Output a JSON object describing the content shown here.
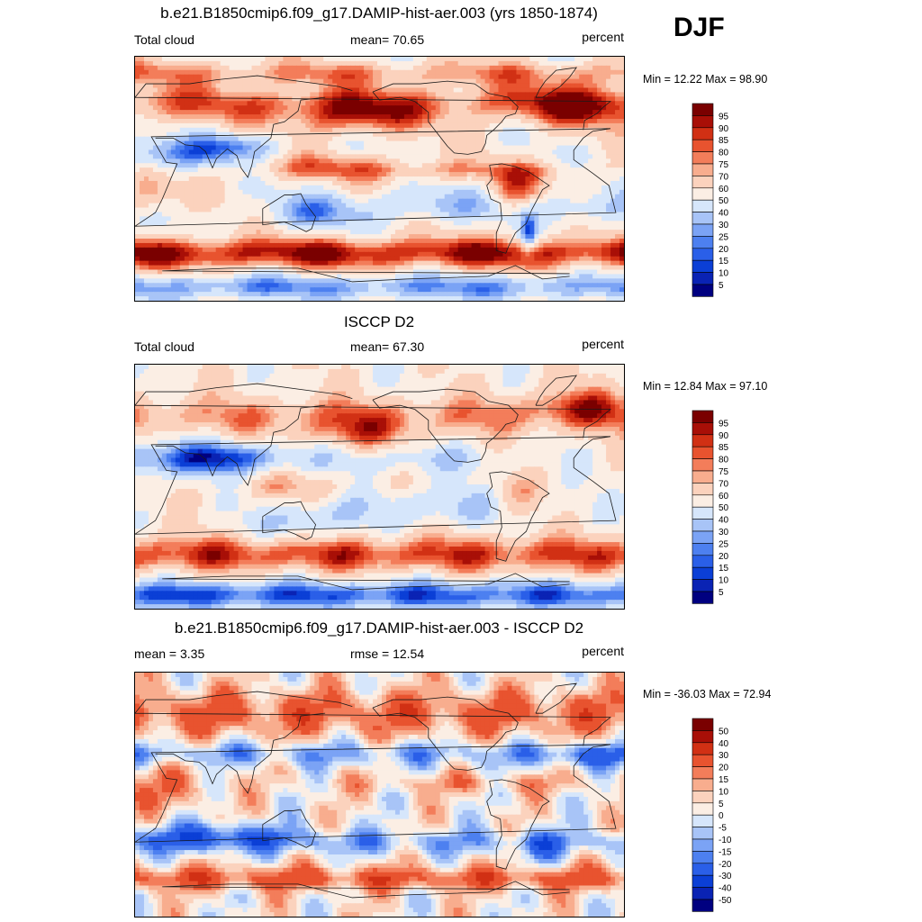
{
  "season": "DJF",
  "panels": [
    {
      "title": "b.e21.B1850cmip6.f09_g17.DAMIP-hist-aer.003 (yrs 1850-1874)",
      "left": "Total cloud",
      "center": "mean=  70.65",
      "right": "percent",
      "minmax": "Min =  12.22 Max =  98.90",
      "colorbar_labels": [
        "95",
        "90",
        "85",
        "80",
        "75",
        "70",
        "60",
        "50",
        "40",
        "30",
        "25",
        "20",
        "15",
        "10",
        "5"
      ]
    },
    {
      "title": "ISCCP D2",
      "left": "Total cloud",
      "center": "mean=  67.30",
      "right": "percent",
      "minmax": "Min =  12.84 Max =  97.10",
      "colorbar_labels": [
        "95",
        "90",
        "85",
        "80",
        "75",
        "70",
        "60",
        "50",
        "40",
        "30",
        "25",
        "20",
        "15",
        "10",
        "5"
      ]
    },
    {
      "title": "b.e21.B1850cmip6.f09_g17.DAMIP-hist-aer.003 - ISCCP D2",
      "left": "mean =   3.35",
      "center": "rmse =  12.54",
      "right": "percent",
      "minmax": "Min = -36.03 Max =  72.94",
      "colorbar_labels": [
        "50",
        "40",
        "30",
        "20",
        "15",
        "10",
        "5",
        "0",
        "-5",
        "-10",
        "-15",
        "-20",
        "-30",
        "-40",
        "-50"
      ]
    }
  ],
  "chart_data": [
    {
      "type": "heatmap",
      "title": "b.e21.B1850cmip6.f09_g17.DAMIP-hist-aer.003 (yrs 1850-1874)",
      "variable": "Total cloud",
      "units": "percent",
      "mean": 70.65,
      "min": 12.22,
      "max": 98.9,
      "levels": [
        5,
        10,
        15,
        20,
        25,
        30,
        40,
        50,
        60,
        70,
        75,
        80,
        85,
        90,
        95
      ]
    },
    {
      "type": "heatmap",
      "title": "ISCCP D2",
      "variable": "Total cloud",
      "units": "percent",
      "mean": 67.3,
      "min": 12.84,
      "max": 97.1,
      "levels": [
        5,
        10,
        15,
        20,
        25,
        30,
        40,
        50,
        60,
        70,
        75,
        80,
        85,
        90,
        95
      ]
    },
    {
      "type": "heatmap",
      "title": "b.e21.B1850cmip6.f09_g17.DAMIP-hist-aer.003 - ISCCP D2",
      "units": "percent",
      "mean": 3.35,
      "rmse": 12.54,
      "min": -36.03,
      "max": 72.94,
      "levels": [
        -50,
        -40,
        -30,
        -20,
        -15,
        -10,
        -5,
        0,
        5,
        10,
        15,
        20,
        30,
        40,
        50
      ]
    }
  ],
  "colors": {
    "colorbar": [
      "#000080",
      "#0a23b4",
      "#0b3fd6",
      "#2a5fe8",
      "#4d80f0",
      "#7ba3f5",
      "#a8c4f7",
      "#d6e6fb",
      "#fbeee4",
      "#fbd2bd",
      "#f8ad8e",
      "#f37d5a",
      "#e8532f",
      "#d13014",
      "#a80f07",
      "#7a0000"
    ],
    "coast": "#1a1a1a"
  }
}
